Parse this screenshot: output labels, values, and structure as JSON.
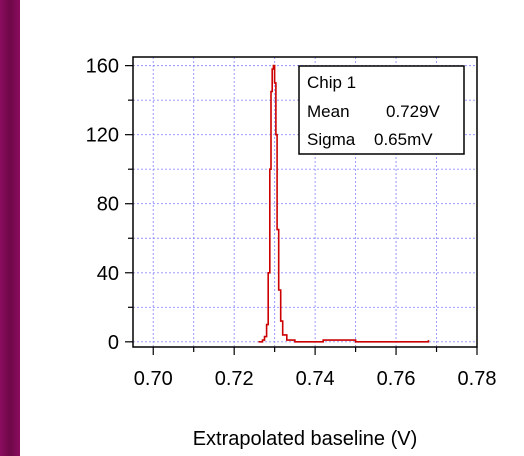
{
  "chart_data": {
    "type": "line",
    "title": "",
    "xlabel": "Extrapolated baseline (V)",
    "ylabel": "",
    "xlim": [
      0.695,
      0.78
    ],
    "ylim": [
      -3,
      165
    ],
    "grid": true,
    "xticks": [
      "0.70",
      "0.72",
      "0.74",
      "0.76",
      "0.78"
    ],
    "xtick_values": [
      0.7,
      0.72,
      0.74,
      0.76,
      0.78
    ],
    "yticks": [
      "0",
      "40",
      "80",
      "120",
      "160"
    ],
    "ytick_values": [
      0,
      40,
      80,
      120,
      160
    ],
    "line_color": "#cc0000",
    "legend": {
      "position": "top-right",
      "lines": [
        {
          "label": "Chip 1",
          "value": ""
        },
        {
          "label": "Mean",
          "value": "0.729V"
        },
        {
          "label": "Sigma",
          "value": "0.65mV"
        }
      ]
    },
    "series": [
      {
        "x": [
          0.726,
          0.727,
          0.7275,
          0.728,
          0.7284,
          0.7288,
          0.7291,
          0.7294,
          0.7297,
          0.73,
          0.7303,
          0.7306,
          0.731,
          0.7315,
          0.732,
          0.733,
          0.735,
          0.742,
          0.75,
          0.76,
          0.768
        ],
        "y": [
          0,
          1,
          3,
          10,
          40,
          100,
          145,
          158,
          160,
          150,
          120,
          65,
          30,
          12,
          4,
          1,
          0,
          1,
          0,
          0,
          1
        ]
      }
    ]
  }
}
